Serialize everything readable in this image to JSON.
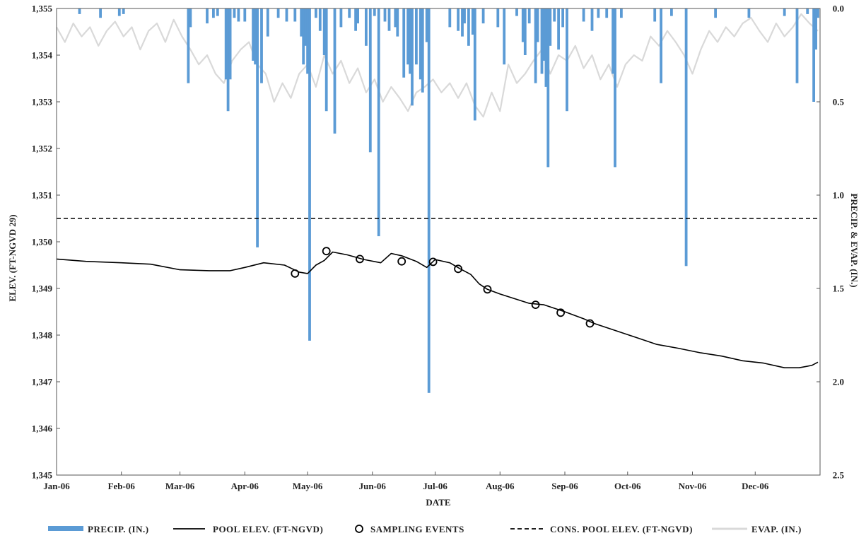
{
  "chart_data": {
    "type": "line",
    "xlabel": "DATE",
    "ylabel_left": "ELEV. (FT-NGVD 29)",
    "ylabel_right": "PRECIP. & EVAP. (IN.)",
    "x_ticks": [
      "Jan-06",
      "Feb-06",
      "Mar-06",
      "Apr-06",
      "May-06",
      "Jun-06",
      "Jul-06",
      "Aug-06",
      "Sep-06",
      "Oct-06",
      "Nov-06",
      "Dec-06"
    ],
    "xlim": [
      "2006-01-01",
      "2006-12-31"
    ],
    "ylim_left": [
      1345,
      1355
    ],
    "yticks_left": [
      "1,345",
      "1,346",
      "1,347",
      "1,348",
      "1,349",
      "1,350",
      "1,351",
      "1,352",
      "1,353",
      "1,354",
      "1,355"
    ],
    "ylim_right_inverted": [
      0.0,
      2.5
    ],
    "yticks_right": [
      "0.0",
      "0.5",
      "1.0",
      "1.5",
      "2.0",
      "2.5"
    ],
    "colors": {
      "precip": "#5b9bd5",
      "pool": "#000000",
      "cons": "#000000",
      "evap": "#d9d9d9"
    },
    "legend_position": "bottom",
    "series": [
      {
        "name": "PRECIP. (IN.)",
        "axis": "right",
        "style": "bars",
        "points": [
          [
            "2006-01-12",
            0.03
          ],
          [
            "2006-01-22",
            0.05
          ],
          [
            "2006-01-31",
            0.04
          ],
          [
            "2006-02-02",
            0.03
          ],
          [
            "2006-03-05",
            0.4
          ],
          [
            "2006-03-06",
            0.1
          ],
          [
            "2006-03-14",
            0.08
          ],
          [
            "2006-03-17",
            0.05
          ],
          [
            "2006-03-19",
            0.04
          ],
          [
            "2006-03-23",
            0.38
          ],
          [
            "2006-03-24",
            0.55
          ],
          [
            "2006-03-25",
            0.38
          ],
          [
            "2006-03-27",
            0.05
          ],
          [
            "2006-03-29",
            0.07
          ],
          [
            "2006-04-01",
            0.07
          ],
          [
            "2006-04-05",
            0.28
          ],
          [
            "2006-04-06",
            0.3
          ],
          [
            "2006-04-07",
            1.28
          ],
          [
            "2006-04-09",
            0.4
          ],
          [
            "2006-04-12",
            0.15
          ],
          [
            "2006-04-17",
            0.05
          ],
          [
            "2006-04-21",
            0.07
          ],
          [
            "2006-04-25",
            0.07
          ],
          [
            "2006-04-28",
            0.15
          ],
          [
            "2006-04-29",
            0.3
          ],
          [
            "2006-04-30",
            0.2
          ],
          [
            "2006-05-01",
            0.35
          ],
          [
            "2006-05-02",
            1.78
          ],
          [
            "2006-05-05",
            0.05
          ],
          [
            "2006-05-07",
            0.12
          ],
          [
            "2006-05-09",
            0.25
          ],
          [
            "2006-05-10",
            0.55
          ],
          [
            "2006-05-14",
            0.67
          ],
          [
            "2006-05-17",
            0.1
          ],
          [
            "2006-05-21",
            0.05
          ],
          [
            "2006-05-24",
            0.12
          ],
          [
            "2006-05-25",
            0.08
          ],
          [
            "2006-05-29",
            0.2
          ],
          [
            "2006-05-31",
            0.77
          ],
          [
            "2006-06-02",
            0.04
          ],
          [
            "2006-06-04",
            1.22
          ],
          [
            "2006-06-07",
            0.07
          ],
          [
            "2006-06-09",
            0.12
          ],
          [
            "2006-06-12",
            0.1
          ],
          [
            "2006-06-13",
            0.15
          ],
          [
            "2006-06-16",
            0.37
          ],
          [
            "2006-06-18",
            0.3
          ],
          [
            "2006-06-19",
            0.35
          ],
          [
            "2006-06-20",
            0.52
          ],
          [
            "2006-06-22",
            0.3
          ],
          [
            "2006-06-24",
            0.38
          ],
          [
            "2006-06-25",
            0.45
          ],
          [
            "2006-06-27",
            0.18
          ],
          [
            "2006-06-28",
            2.06
          ],
          [
            "2006-07-08",
            0.1
          ],
          [
            "2006-07-12",
            0.12
          ],
          [
            "2006-07-14",
            0.15
          ],
          [
            "2006-07-15",
            0.08
          ],
          [
            "2006-07-17",
            0.2
          ],
          [
            "2006-07-19",
            0.14
          ],
          [
            "2006-07-20",
            0.6
          ],
          [
            "2006-07-24",
            0.08
          ],
          [
            "2006-07-31",
            0.1
          ],
          [
            "2006-08-03",
            0.3
          ],
          [
            "2006-08-09",
            0.04
          ],
          [
            "2006-08-12",
            0.18
          ],
          [
            "2006-08-13",
            0.25
          ],
          [
            "2006-08-15",
            0.08
          ],
          [
            "2006-08-18",
            0.4
          ],
          [
            "2006-08-19",
            0.18
          ],
          [
            "2006-08-21",
            0.35
          ],
          [
            "2006-08-22",
            0.28
          ],
          [
            "2006-08-23",
            0.42
          ],
          [
            "2006-08-24",
            0.85
          ],
          [
            "2006-08-25",
            0.2
          ],
          [
            "2006-08-27",
            0.07
          ],
          [
            "2006-08-29",
            0.22
          ],
          [
            "2006-08-31",
            0.1
          ],
          [
            "2006-09-02",
            0.55
          ],
          [
            "2006-09-10",
            0.07
          ],
          [
            "2006-09-14",
            0.12
          ],
          [
            "2006-09-17",
            0.05
          ],
          [
            "2006-09-21",
            0.05
          ],
          [
            "2006-09-24",
            0.35
          ],
          [
            "2006-09-25",
            0.85
          ],
          [
            "2006-09-28",
            0.05
          ],
          [
            "2006-10-14",
            0.07
          ],
          [
            "2006-10-17",
            0.4
          ],
          [
            "2006-10-22",
            0.04
          ],
          [
            "2006-10-29",
            1.38
          ],
          [
            "2006-11-12",
            0.05
          ],
          [
            "2006-11-28",
            0.05
          ],
          [
            "2006-12-15",
            0.04
          ],
          [
            "2006-12-21",
            0.4
          ],
          [
            "2006-12-26",
            0.03
          ],
          [
            "2006-12-29",
            0.5
          ],
          [
            "2006-12-30",
            0.22
          ],
          [
            "2006-12-31",
            0.05
          ]
        ]
      },
      {
        "name": "POOL ELEV. (FT-NGVD)",
        "axis": "left",
        "style": "line",
        "points": [
          [
            "2006-01-01",
            1349.63
          ],
          [
            "2006-01-15",
            1349.58
          ],
          [
            "2006-02-01",
            1349.55
          ],
          [
            "2006-02-15",
            1349.52
          ],
          [
            "2006-03-01",
            1349.4
          ],
          [
            "2006-03-15",
            1349.38
          ],
          [
            "2006-03-25",
            1349.38
          ],
          [
            "2006-04-01",
            1349.45
          ],
          [
            "2006-04-10",
            1349.55
          ],
          [
            "2006-04-20",
            1349.5
          ],
          [
            "2006-04-27",
            1349.35
          ],
          [
            "2006-05-01",
            1349.32
          ],
          [
            "2006-05-05",
            1349.5
          ],
          [
            "2006-05-09",
            1349.6
          ],
          [
            "2006-05-13",
            1349.78
          ],
          [
            "2006-05-20",
            1349.72
          ],
          [
            "2006-05-28",
            1349.62
          ],
          [
            "2006-06-05",
            1349.55
          ],
          [
            "2006-06-10",
            1349.75
          ],
          [
            "2006-06-15",
            1349.7
          ],
          [
            "2006-06-22",
            1349.58
          ],
          [
            "2006-06-27",
            1349.45
          ],
          [
            "2006-07-01",
            1349.62
          ],
          [
            "2006-07-08",
            1349.55
          ],
          [
            "2006-07-13",
            1349.42
          ],
          [
            "2006-07-18",
            1349.3
          ],
          [
            "2006-07-22",
            1349.1
          ],
          [
            "2006-07-26",
            1348.98
          ],
          [
            "2006-08-01",
            1348.88
          ],
          [
            "2006-08-08",
            1348.78
          ],
          [
            "2006-08-15",
            1348.68
          ],
          [
            "2006-08-22",
            1348.65
          ],
          [
            "2006-09-01",
            1348.5
          ],
          [
            "2006-09-10",
            1348.35
          ],
          [
            "2006-09-15",
            1348.25
          ],
          [
            "2006-09-25",
            1348.1
          ],
          [
            "2006-10-05",
            1347.95
          ],
          [
            "2006-10-15",
            1347.8
          ],
          [
            "2006-10-25",
            1347.72
          ],
          [
            "2006-11-05",
            1347.62
          ],
          [
            "2006-11-15",
            1347.55
          ],
          [
            "2006-11-25",
            1347.45
          ],
          [
            "2006-12-05",
            1347.4
          ],
          [
            "2006-12-15",
            1347.3
          ],
          [
            "2006-12-22",
            1347.3
          ],
          [
            "2006-12-28",
            1347.35
          ],
          [
            "2006-12-31",
            1347.42
          ]
        ]
      },
      {
        "name": "SAMPLING EVENTS",
        "axis": "left",
        "style": "markers",
        "points": [
          [
            "2006-04-25",
            1349.32
          ],
          [
            "2006-05-10",
            1349.8
          ],
          [
            "2006-05-26",
            1349.63
          ],
          [
            "2006-06-15",
            1349.58
          ],
          [
            "2006-06-30",
            1349.57
          ],
          [
            "2006-07-12",
            1349.42
          ],
          [
            "2006-07-26",
            1348.98
          ],
          [
            "2006-08-18",
            1348.65
          ],
          [
            "2006-08-30",
            1348.48
          ],
          [
            "2006-09-13",
            1348.25
          ]
        ]
      },
      {
        "name": "CONS. POOL ELEV. (FT-NGVD)",
        "axis": "left",
        "style": "dashed",
        "points": [
          [
            "2006-01-01",
            1350.5
          ],
          [
            "2006-12-31",
            1350.5
          ]
        ]
      },
      {
        "name": "EVAP. (IN.)",
        "axis": "right",
        "style": "line",
        "points": [
          [
            "2006-01-01",
            0.1
          ],
          [
            "2006-01-05",
            0.18
          ],
          [
            "2006-01-09",
            0.08
          ],
          [
            "2006-01-13",
            0.15
          ],
          [
            "2006-01-17",
            0.1
          ],
          [
            "2006-01-21",
            0.2
          ],
          [
            "2006-01-25",
            0.12
          ],
          [
            "2006-01-29",
            0.07
          ],
          [
            "2006-02-02",
            0.15
          ],
          [
            "2006-02-06",
            0.1
          ],
          [
            "2006-02-10",
            0.22
          ],
          [
            "2006-02-14",
            0.12
          ],
          [
            "2006-02-18",
            0.08
          ],
          [
            "2006-02-22",
            0.18
          ],
          [
            "2006-02-26",
            0.06
          ],
          [
            "2006-03-02",
            0.15
          ],
          [
            "2006-03-06",
            0.22
          ],
          [
            "2006-03-10",
            0.3
          ],
          [
            "2006-03-14",
            0.25
          ],
          [
            "2006-03-18",
            0.35
          ],
          [
            "2006-03-22",
            0.4
          ],
          [
            "2006-03-26",
            0.28
          ],
          [
            "2006-03-30",
            0.22
          ],
          [
            "2006-04-03",
            0.18
          ],
          [
            "2006-04-07",
            0.3
          ],
          [
            "2006-04-11",
            0.35
          ],
          [
            "2006-04-15",
            0.5
          ],
          [
            "2006-04-19",
            0.4
          ],
          [
            "2006-04-23",
            0.48
          ],
          [
            "2006-04-27",
            0.35
          ],
          [
            "2006-05-01",
            0.3
          ],
          [
            "2006-05-05",
            0.42
          ],
          [
            "2006-05-09",
            0.25
          ],
          [
            "2006-05-13",
            0.35
          ],
          [
            "2006-05-17",
            0.28
          ],
          [
            "2006-05-21",
            0.4
          ],
          [
            "2006-05-25",
            0.32
          ],
          [
            "2006-05-29",
            0.45
          ],
          [
            "2006-06-02",
            0.38
          ],
          [
            "2006-06-06",
            0.5
          ],
          [
            "2006-06-10",
            0.42
          ],
          [
            "2006-06-14",
            0.48
          ],
          [
            "2006-06-18",
            0.55
          ],
          [
            "2006-06-22",
            0.45
          ],
          [
            "2006-06-26",
            0.42
          ],
          [
            "2006-06-30",
            0.38
          ],
          [
            "2006-07-04",
            0.45
          ],
          [
            "2006-07-08",
            0.4
          ],
          [
            "2006-07-12",
            0.48
          ],
          [
            "2006-07-16",
            0.4
          ],
          [
            "2006-07-20",
            0.52
          ],
          [
            "2006-07-24",
            0.58
          ],
          [
            "2006-07-28",
            0.45
          ],
          [
            "2006-08-01",
            0.55
          ],
          [
            "2006-08-05",
            0.3
          ],
          [
            "2006-08-09",
            0.4
          ],
          [
            "2006-08-13",
            0.35
          ],
          [
            "2006-08-17",
            0.28
          ],
          [
            "2006-08-21",
            0.22
          ],
          [
            "2006-08-25",
            0.35
          ],
          [
            "2006-08-29",
            0.25
          ],
          [
            "2006-09-02",
            0.28
          ],
          [
            "2006-09-06",
            0.2
          ],
          [
            "2006-09-10",
            0.32
          ],
          [
            "2006-09-14",
            0.25
          ],
          [
            "2006-09-18",
            0.38
          ],
          [
            "2006-09-22",
            0.3
          ],
          [
            "2006-09-26",
            0.42
          ],
          [
            "2006-09-30",
            0.3
          ],
          [
            "2006-10-04",
            0.25
          ],
          [
            "2006-10-08",
            0.28
          ],
          [
            "2006-10-12",
            0.15
          ],
          [
            "2006-10-16",
            0.2
          ],
          [
            "2006-10-20",
            0.12
          ],
          [
            "2006-10-24",
            0.18
          ],
          [
            "2006-10-28",
            0.25
          ],
          [
            "2006-11-01",
            0.35
          ],
          [
            "2006-11-05",
            0.22
          ],
          [
            "2006-11-09",
            0.12
          ],
          [
            "2006-11-13",
            0.18
          ],
          [
            "2006-11-17",
            0.1
          ],
          [
            "2006-11-21",
            0.15
          ],
          [
            "2006-11-25",
            0.08
          ],
          [
            "2006-11-29",
            0.05
          ],
          [
            "2006-12-03",
            0.12
          ],
          [
            "2006-12-07",
            0.18
          ],
          [
            "2006-12-11",
            0.08
          ],
          [
            "2006-12-15",
            0.15
          ],
          [
            "2006-12-19",
            0.1
          ],
          [
            "2006-12-23",
            0.03
          ],
          [
            "2006-12-27",
            0.08
          ],
          [
            "2006-12-31",
            0.12
          ]
        ]
      }
    ],
    "legend": [
      {
        "label": "PRECIP. (IN.)",
        "symbol": "bar"
      },
      {
        "label": "POOL ELEV. (FT-NGVD)",
        "symbol": "line"
      },
      {
        "label": "SAMPLING EVENTS",
        "symbol": "circle"
      },
      {
        "label": "CONS. POOL ELEV. (FT-NGVD)",
        "symbol": "dashed"
      },
      {
        "label": "EVAP. (IN.)",
        "symbol": "gray-line"
      }
    ]
  }
}
